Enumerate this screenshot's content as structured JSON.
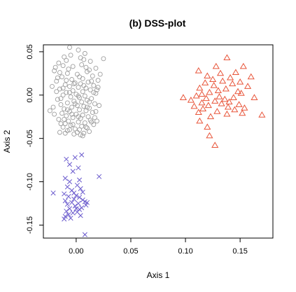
{
  "chart_data": {
    "type": "scatter",
    "title": "(b)  DSS-plot",
    "xlabel": "Axis 1",
    "ylabel": "Axis 2",
    "xlim": [
      -0.03,
      0.18
    ],
    "ylim": [
      -0.165,
      0.058
    ],
    "x_ticks": [
      0.0,
      0.05,
      0.1,
      0.15
    ],
    "x_tick_labels": [
      "0.00",
      "0.05",
      "0.10",
      "0.15"
    ],
    "y_ticks": [
      0.05,
      0.0,
      -0.05,
      -0.1,
      -0.15
    ],
    "y_tick_labels": [
      "0.05",
      "0.00",
      "-0.05",
      "-0.10",
      "-0.15"
    ],
    "grid": false,
    "legend": "none",
    "series": [
      {
        "marker": "circle",
        "color": "#9e9e9e",
        "points": [
          [
            0.002,
            0.052
          ],
          [
            -0.006,
            0.055
          ],
          [
            0.008,
            0.048
          ],
          [
            0.025,
            0.042
          ],
          [
            -0.011,
            0.044
          ],
          [
            0.013,
            0.039
          ],
          [
            -0.016,
            0.037
          ],
          [
            0.005,
            0.035
          ],
          [
            -0.003,
            0.033
          ],
          [
            0.018,
            0.031
          ],
          [
            -0.02,
            0.028
          ],
          [
            0.01,
            0.027
          ],
          [
            -0.008,
            0.025
          ],
          [
            0.001,
            0.024
          ],
          [
            0.015,
            0.022
          ],
          [
            -0.013,
            0.021
          ],
          [
            0.006,
            0.019
          ],
          [
            -0.004,
            0.018
          ],
          [
            0.02,
            0.017
          ],
          [
            -0.018,
            0.016
          ],
          [
            0.011,
            0.015
          ],
          [
            -0.001,
            0.014
          ],
          [
            0.004,
            0.013
          ],
          [
            -0.01,
            0.012
          ],
          [
            0.016,
            0.011
          ],
          [
            -0.006,
            0.01
          ],
          [
            0.002,
            0.009
          ],
          [
            0.009,
            0.008
          ],
          [
            -0.015,
            0.007
          ],
          [
            0.013,
            0.006
          ],
          [
            -0.003,
            0.005
          ],
          [
            0.006,
            0.004
          ],
          [
            -0.009,
            0.003
          ],
          [
            0.018,
            0.002
          ],
          [
            0.0,
            0.001
          ],
          [
            -0.012,
            0.0
          ],
          [
            0.008,
            -0.001
          ],
          [
            -0.005,
            -0.002
          ],
          [
            0.003,
            -0.003
          ],
          [
            0.014,
            -0.004
          ],
          [
            -0.017,
            -0.005
          ],
          [
            0.01,
            -0.006
          ],
          [
            -0.002,
            -0.007
          ],
          [
            0.005,
            -0.008
          ],
          [
            -0.008,
            -0.009
          ],
          [
            0.017,
            -0.01
          ],
          [
            -0.014,
            -0.011
          ],
          [
            0.001,
            -0.012
          ],
          [
            0.007,
            -0.013
          ],
          [
            -0.004,
            -0.014
          ],
          [
            0.012,
            -0.015
          ],
          [
            -0.011,
            -0.016
          ],
          [
            0.003,
            -0.017
          ],
          [
            0.009,
            -0.018
          ],
          [
            -0.006,
            -0.019
          ],
          [
            0.015,
            -0.02
          ],
          [
            -0.013,
            -0.021
          ],
          [
            0.0,
            -0.022
          ],
          [
            0.006,
            -0.023
          ],
          [
            -0.009,
            -0.024
          ],
          [
            0.011,
            -0.025
          ],
          [
            -0.003,
            -0.026
          ],
          [
            0.004,
            -0.027
          ],
          [
            -0.016,
            -0.028
          ],
          [
            0.013,
            -0.029
          ],
          [
            -0.007,
            -0.03
          ],
          [
            0.002,
            -0.031
          ],
          [
            0.008,
            -0.032
          ],
          [
            -0.01,
            -0.033
          ],
          [
            0.016,
            -0.034
          ],
          [
            -0.005,
            -0.035
          ],
          [
            0.005,
            -0.036
          ],
          [
            -0.012,
            -0.037
          ],
          [
            0.01,
            -0.038
          ],
          [
            -0.001,
            -0.039
          ],
          [
            0.003,
            -0.04
          ],
          [
            -0.008,
            -0.041
          ],
          [
            0.012,
            -0.042
          ],
          [
            -0.015,
            -0.043
          ],
          [
            0.007,
            -0.044
          ],
          [
            -0.002,
            -0.045
          ],
          [
            0.004,
            -0.046
          ],
          [
            -0.022,
            0.01
          ],
          [
            0.021,
            -0.012
          ],
          [
            -0.024,
            -0.018
          ],
          [
            0.022,
            0.024
          ],
          [
            -0.019,
            0.032
          ],
          [
            -0.009,
            0.04
          ],
          [
            0.007,
            0.041
          ],
          [
            -0.014,
            -0.033
          ],
          [
            -0.007,
            0.03
          ],
          [
            0.012,
            0.029
          ],
          [
            -0.015,
            0.026
          ],
          [
            0.003,
            0.021
          ],
          [
            -0.009,
            0.017
          ],
          [
            0.014,
            0.016
          ],
          [
            -0.002,
            0.013
          ],
          [
            0.007,
            0.011
          ],
          [
            -0.012,
            0.008
          ],
          [
            0.019,
            0.006
          ],
          [
            -0.006,
            0.003
          ],
          [
            0.002,
            -0.001
          ],
          [
            -0.014,
            -0.004
          ],
          [
            0.012,
            -0.008
          ],
          [
            -0.001,
            -0.01
          ],
          [
            0.01,
            -0.014
          ],
          [
            -0.008,
            -0.017
          ],
          [
            0.018,
            -0.019
          ],
          [
            -0.004,
            -0.022
          ],
          [
            0.002,
            -0.025
          ],
          [
            -0.011,
            -0.028
          ],
          [
            0.014,
            -0.031
          ],
          [
            -0.003,
            -0.034
          ],
          [
            0.009,
            -0.037
          ],
          [
            -0.006,
            -0.04
          ],
          [
            0.001,
            -0.043
          ],
          [
            -0.018,
            0.004
          ],
          [
            0.02,
            0.009
          ],
          [
            -0.021,
            -0.014
          ],
          [
            0.017,
            -0.026
          ],
          [
            -0.005,
            0.046
          ],
          [
            0.004,
            0.043
          ],
          [
            -0.012,
            0.034
          ],
          [
            0.009,
            0.032
          ],
          [
            -0.017,
            0.02
          ],
          [
            0.016,
            0.003
          ],
          [
            -0.02,
            -0.022
          ],
          [
            0.019,
            -0.03
          ],
          [
            -0.01,
            -0.044
          ],
          [
            0.006,
            -0.047
          ]
        ]
      },
      {
        "marker": "triangle",
        "color": "#e8553a",
        "points": [
          [
            0.138,
            0.043
          ],
          [
            0.128,
            0.033
          ],
          [
            0.153,
            0.033
          ],
          [
            0.112,
            0.028
          ],
          [
            0.146,
            0.026
          ],
          [
            0.132,
            0.025
          ],
          [
            0.12,
            0.022
          ],
          [
            0.16,
            0.021
          ],
          [
            0.141,
            0.02
          ],
          [
            0.125,
            0.018
          ],
          [
            0.134,
            0.016
          ],
          [
            0.15,
            0.015
          ],
          [
            0.118,
            0.014
          ],
          [
            0.143,
            0.013
          ],
          [
            0.126,
            0.011
          ],
          [
            0.157,
            0.01
          ],
          [
            0.113,
            0.008
          ],
          [
            0.137,
            0.007
          ],
          [
            0.13,
            0.005
          ],
          [
            0.148,
            0.004
          ],
          [
            0.122,
            0.003
          ],
          [
            0.151,
            0.002
          ],
          [
            0.115,
            0.001
          ],
          [
            0.11,
            -0.001
          ],
          [
            0.131,
            -0.002
          ],
          [
            0.144,
            -0.003
          ],
          [
            0.119,
            -0.004
          ],
          [
            0.136,
            -0.005
          ],
          [
            0.163,
            -0.003
          ],
          [
            0.105,
            -0.006
          ],
          [
            0.098,
            -0.003
          ],
          [
            0.127,
            -0.007
          ],
          [
            0.14,
            -0.008
          ],
          [
            0.115,
            -0.009
          ],
          [
            0.133,
            -0.01
          ],
          [
            0.149,
            -0.011
          ],
          [
            0.121,
            -0.012
          ],
          [
            0.108,
            -0.013
          ],
          [
            0.139,
            -0.014
          ],
          [
            0.116,
            -0.016
          ],
          [
            0.145,
            -0.017
          ],
          [
            0.154,
            -0.015
          ],
          [
            0.129,
            -0.019
          ],
          [
            0.112,
            -0.02
          ],
          [
            0.17,
            -0.023
          ],
          [
            0.138,
            -0.022
          ],
          [
            0.123,
            -0.025
          ],
          [
            0.113,
            -0.03
          ],
          [
            0.12,
            -0.037
          ],
          [
            0.122,
            -0.047
          ],
          [
            0.127,
            -0.058
          ],
          [
            0.152,
            -0.021
          ]
        ]
      },
      {
        "marker": "x",
        "color": "#6a5acd",
        "points": [
          [
            -0.001,
            -0.072
          ],
          [
            -0.009,
            -0.074
          ],
          [
            0.005,
            -0.069
          ],
          [
            -0.006,
            -0.08
          ],
          [
            0.002,
            -0.084
          ],
          [
            -0.003,
            -0.088
          ],
          [
            0.021,
            -0.094
          ],
          [
            -0.01,
            -0.096
          ],
          [
            0.003,
            -0.098
          ],
          [
            -0.006,
            -0.1
          ],
          [
            0.001,
            -0.104
          ],
          [
            -0.008,
            -0.106
          ],
          [
            0.004,
            -0.108
          ],
          [
            -0.004,
            -0.11
          ],
          [
            0.006,
            -0.112
          ],
          [
            -0.021,
            -0.113
          ],
          [
            -0.011,
            -0.114
          ],
          [
            0.0,
            -0.116
          ],
          [
            -0.007,
            -0.117
          ],
          [
            0.003,
            -0.118
          ],
          [
            -0.002,
            -0.12
          ],
          [
            0.006,
            -0.121
          ],
          [
            -0.01,
            -0.122
          ],
          [
            0.008,
            -0.123
          ],
          [
            -0.004,
            -0.124
          ],
          [
            0.002,
            -0.125
          ],
          [
            -0.008,
            -0.126
          ],
          [
            0.009,
            -0.127
          ],
          [
            -0.001,
            -0.128
          ],
          [
            0.005,
            -0.13
          ],
          [
            -0.006,
            -0.131
          ],
          [
            0.003,
            -0.132
          ],
          [
            -0.009,
            -0.134
          ],
          [
            0.001,
            -0.135
          ],
          [
            -0.003,
            -0.136
          ],
          [
            -0.007,
            -0.138
          ],
          [
            0.004,
            -0.139
          ],
          [
            -0.01,
            -0.14
          ],
          [
            -0.005,
            -0.142
          ],
          [
            -0.011,
            -0.143
          ],
          [
            0.0,
            -0.131
          ],
          [
            0.01,
            -0.124
          ],
          [
            -0.002,
            -0.113
          ],
          [
            0.008,
            -0.161
          ]
        ]
      }
    ]
  }
}
